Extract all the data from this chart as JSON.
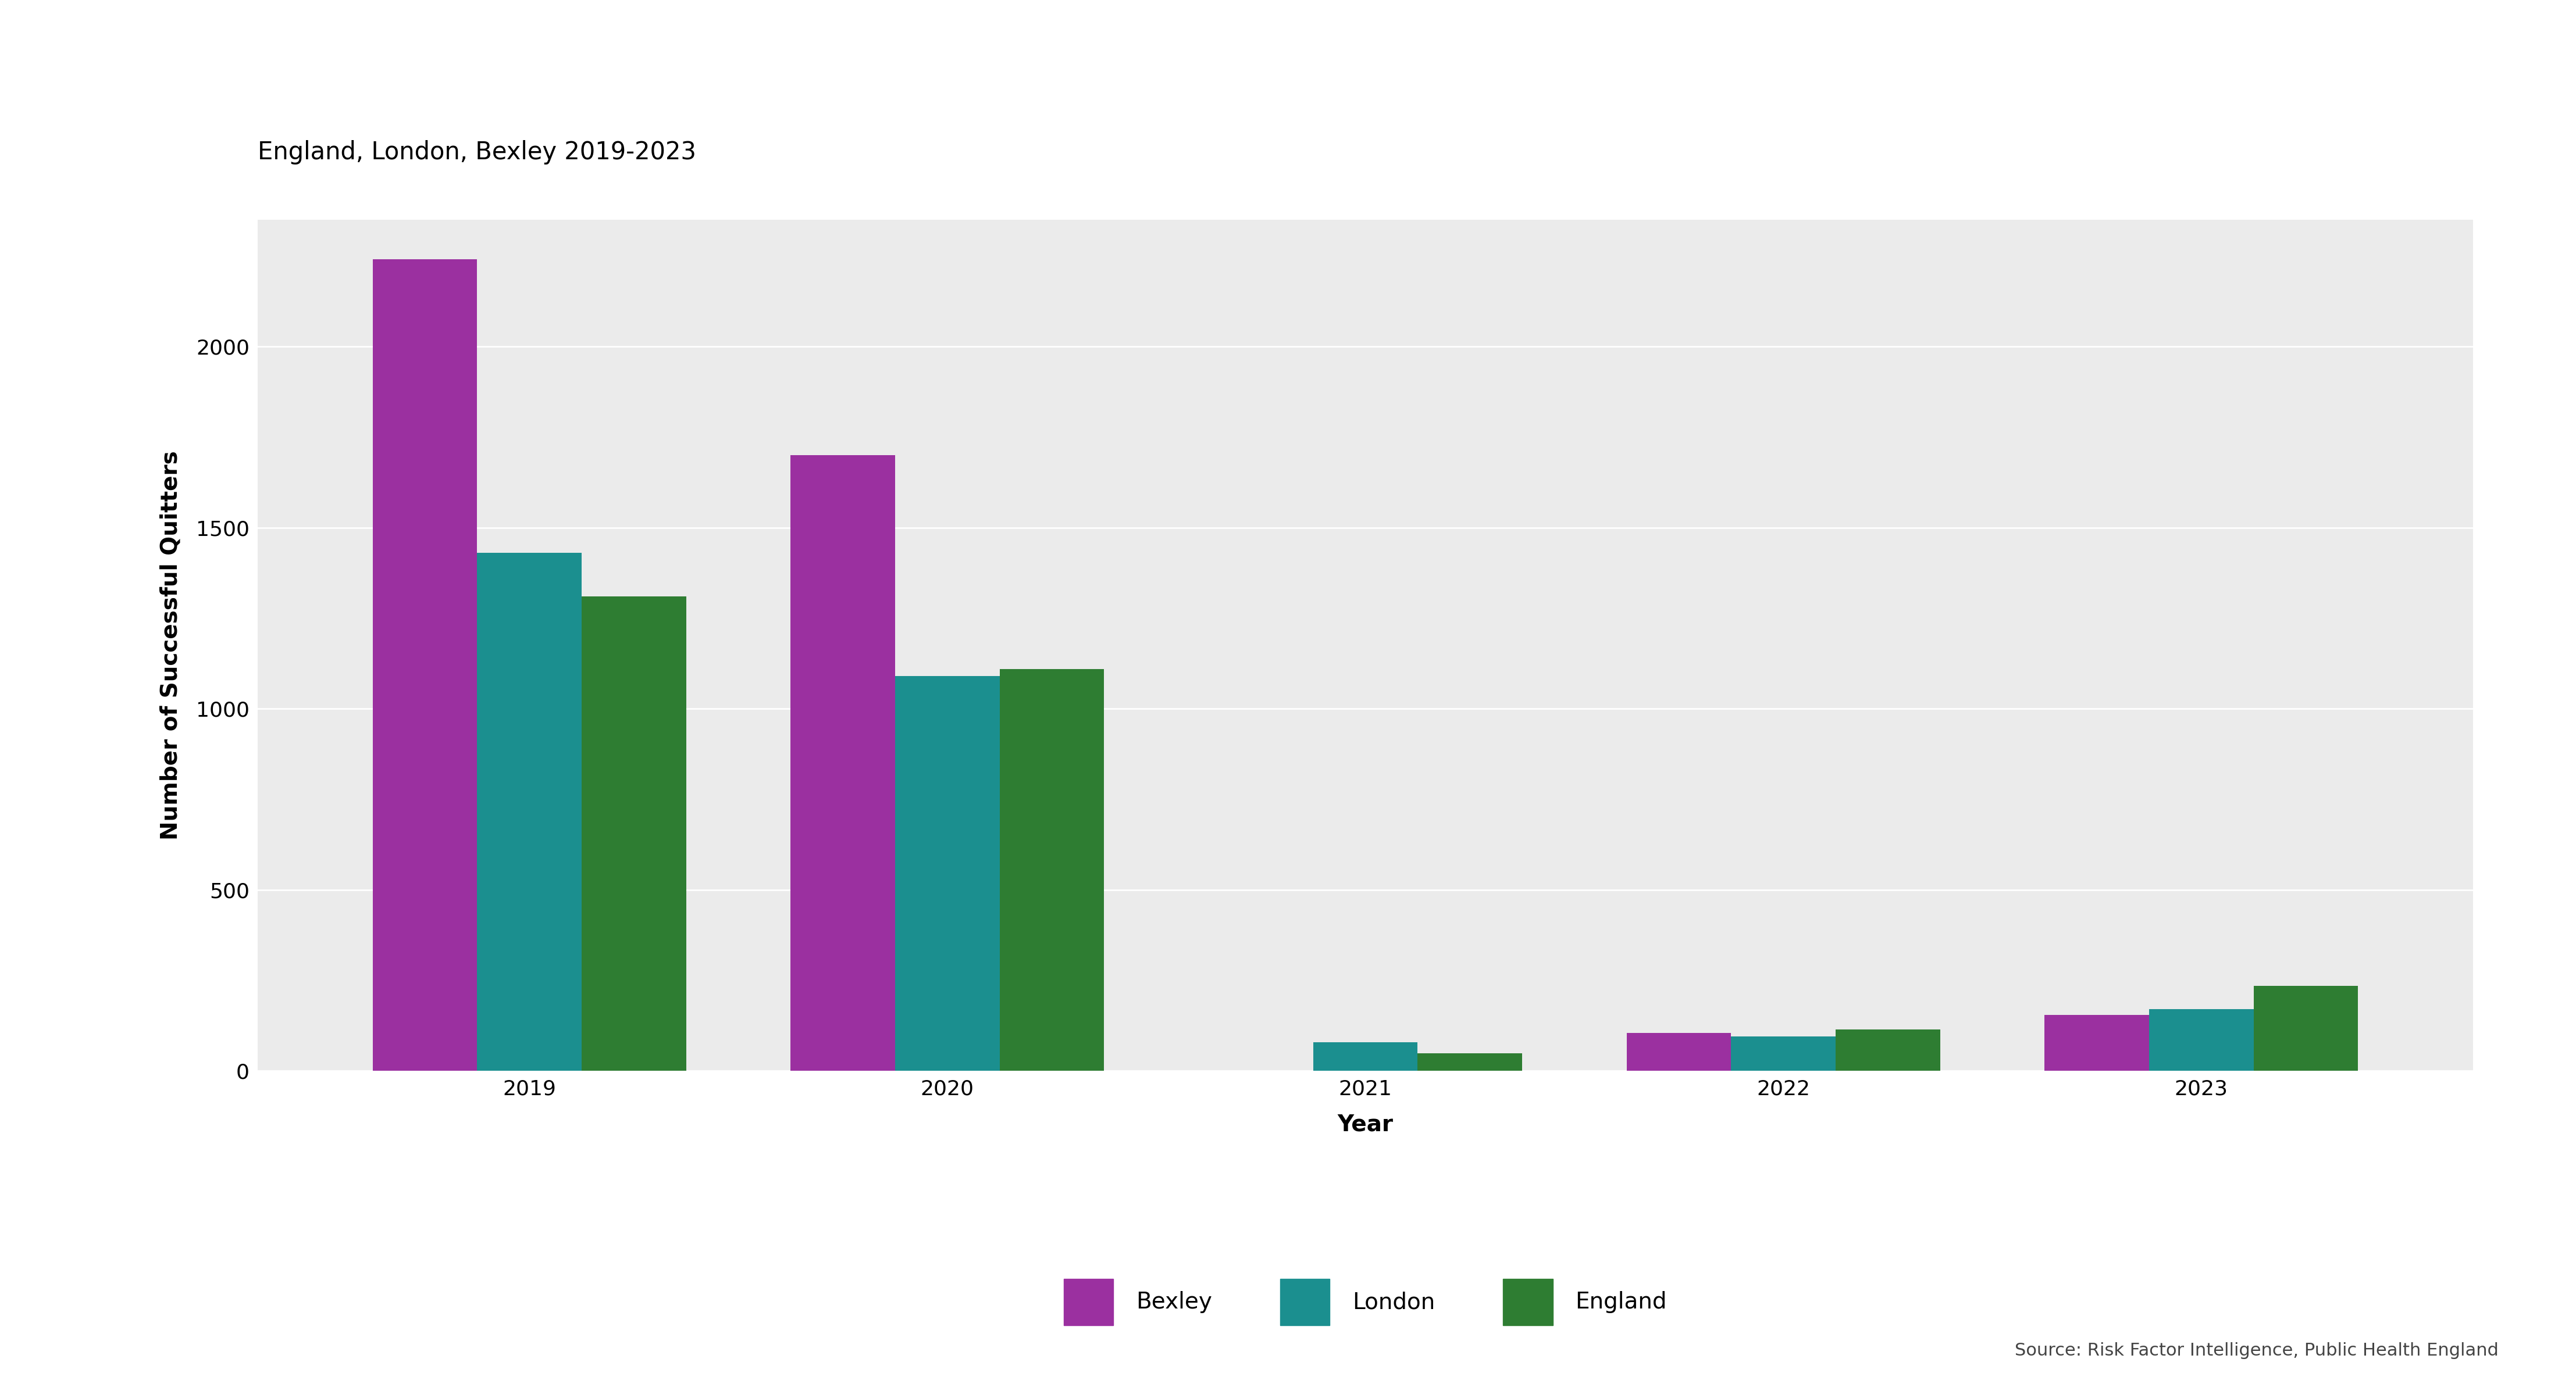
{
  "title": "England, London, Bexley 2019-2023",
  "xlabel": "Year",
  "ylabel": "Number of Successful Quitters",
  "source": "Source: Risk Factor Intelligence, Public Health England",
  "years": [
    "2019",
    "2020",
    "2021",
    "2022",
    "2023"
  ],
  "series": {
    "Bexley": [
      2240,
      1700,
      0,
      105,
      155
    ],
    "London": [
      1430,
      1090,
      80,
      95,
      170
    ],
    "England": [
      1310,
      1110,
      48,
      115,
      235
    ]
  },
  "colors": {
    "Bexley": "#9B30A0",
    "London": "#1B8F8F",
    "England": "#2E7D32"
  },
  "ylim": [
    0,
    2350
  ],
  "yticks": [
    0,
    500,
    1000,
    1500,
    2000
  ],
  "ytick_labels": [
    "0",
    "500",
    "1000",
    "1500",
    "2000"
  ],
  "background_color": "#EBEBEB",
  "figure_background": "#FFFFFF",
  "bar_width": 0.25,
  "title_fontsize": 30,
  "axis_label_fontsize": 28,
  "tick_fontsize": 26,
  "legend_fontsize": 28,
  "source_fontsize": 22
}
